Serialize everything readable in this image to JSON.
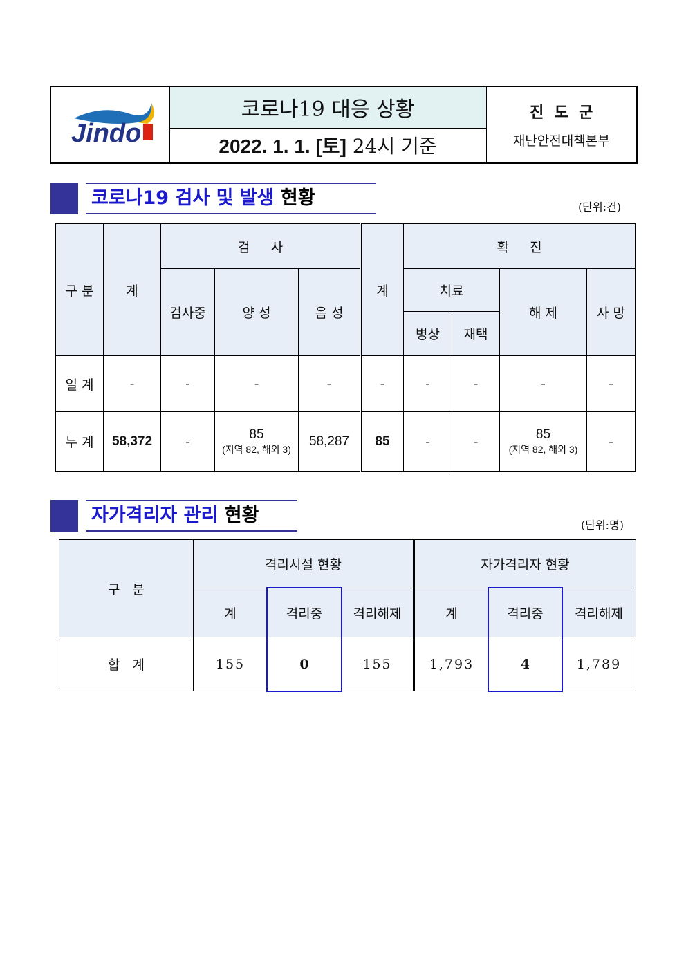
{
  "header": {
    "logo_text": "Jindo",
    "title": "코로나19 대응 상황",
    "date_bold": "2022. 1. 1. [토]",
    "date_rest": " 24시 기준",
    "org": "진  도  군",
    "dept": "재난안전대책본부"
  },
  "section1": {
    "title_blue": "코로나19 검사 및 발생",
    "title_black": "현황",
    "unit": "(단위:건)",
    "headers": {
      "category": "구 분",
      "total": "계",
      "test": "검     사",
      "testing": "검사중",
      "positive": "양 성",
      "negative": "음 성",
      "conf_total": "계",
      "confirmed": "확     진",
      "treatment": "치료",
      "hospital": "병상",
      "home": "재택",
      "released": "해 제",
      "death": "사 망"
    },
    "rows": [
      {
        "label": "일 계",
        "total": "-",
        "testing": "-",
        "positive": "-",
        "positive_sub": "",
        "negative": "-",
        "conf_total": "-",
        "hospital": "-",
        "home": "-",
        "released": "-",
        "released_sub": "",
        "death": "-"
      },
      {
        "label": "누 계",
        "total": "58,372",
        "testing": "-",
        "positive": "85",
        "positive_sub": "(지역 82, 해외 3)",
        "negative": "58,287",
        "conf_total": "85",
        "hospital": "-",
        "home": "-",
        "released": "85",
        "released_sub": "(지역 82, 해외 3)",
        "death": "-"
      }
    ]
  },
  "section2": {
    "title_blue": "자가격리자 관리",
    "title_black": "현황",
    "unit": "(단위:명)",
    "headers": {
      "category": "구   분",
      "facility": "격리시설 현황",
      "self": "자가격리자 현황",
      "total": "계",
      "isolating": "격리중",
      "released": "격리해제"
    },
    "row": {
      "label": "합   계",
      "f_total": "155",
      "f_isolating": "0",
      "f_released": "155",
      "s_total": "1,793",
      "s_isolating": "4",
      "s_released": "1,789"
    }
  }
}
